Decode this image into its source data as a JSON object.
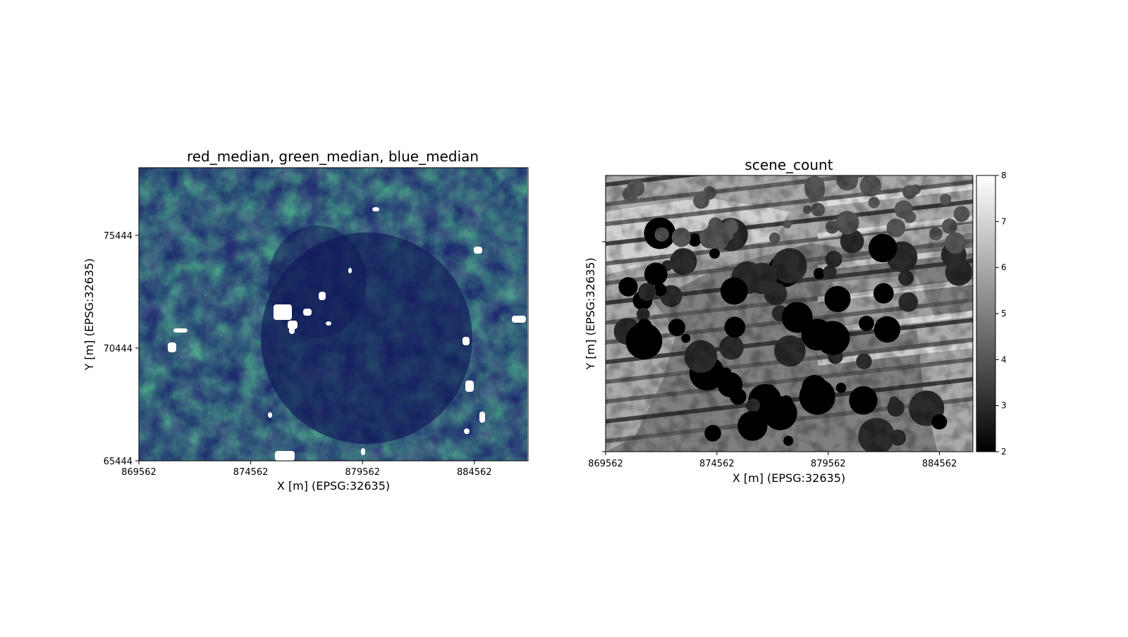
{
  "chart_data": [
    {
      "type": "heatmap",
      "title": "red_median, green_median, blue_median",
      "xlabel": "X [m] (EPSG:32635)",
      "ylabel": "Y [m] (EPSG:32635)",
      "xlim": [
        869562,
        886962
      ],
      "ylim": [
        65444,
        78444
      ],
      "xticks": [
        869562,
        874562,
        879562,
        884562
      ],
      "yticks": [
        65444,
        70444,
        75444
      ],
      "colormap": "rgb",
      "colors": {
        "background": "#16206a",
        "vegetation": "#2e4a3a",
        "dense": "#101a5a",
        "bright": "#8a8fb5",
        "cloud": "#ffffff"
      }
    },
    {
      "type": "heatmap",
      "title": "scene_count",
      "xlabel": "X [m] (EPSG:32635)",
      "ylabel": "Y [m] (EPSG:32635)",
      "xlim": [
        869562,
        886062
      ],
      "xticks": [
        869562,
        874562,
        879562,
        884562
      ],
      "colormap": "gray",
      "colorbar": {
        "min": 2,
        "max": 8,
        "ticks": [
          2,
          3,
          4,
          5,
          6,
          7,
          8
        ]
      },
      "levels": [
        2,
        3,
        4,
        5,
        6,
        7,
        8
      ]
    }
  ]
}
